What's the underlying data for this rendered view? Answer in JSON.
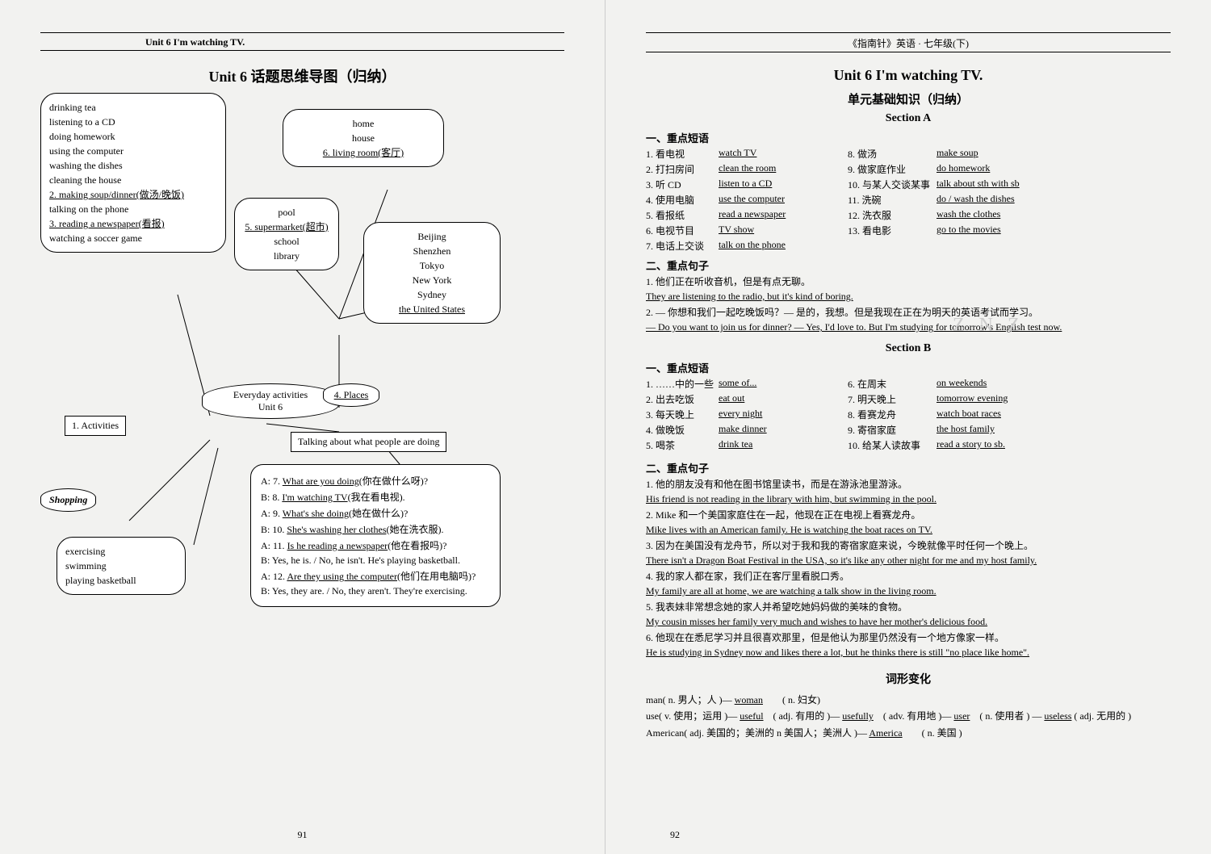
{
  "left": {
    "header": "Unit 6  I'm watching TV.",
    "title": "Unit 6   话题思维导图（归纳）",
    "page_no": "91",
    "activities_label": "1. Activities",
    "activities": [
      "drinking tea",
      "listening to a CD",
      "doing homework",
      "using the computer",
      "washing the dishes",
      "cleaning the house",
      "2. making soup/dinner(做汤/晚饭)",
      "talking on the phone",
      "3. reading a newspaper(看报)",
      "watching a soccer game"
    ],
    "places_home": [
      "home",
      "house",
      "6. living room(客厅)"
    ],
    "places_school": [
      "pool",
      "5. supermarket(超市)",
      "school",
      "library"
    ],
    "places_city": [
      "Beijing",
      "Shenzhen",
      "Tokyo",
      "New York",
      "Sydney",
      "the United States"
    ],
    "center_top": "Everyday activities",
    "center_mid": "Unit 6",
    "center_right": "Talking about what people are doing",
    "places_label": "4. Places",
    "shopping_label": "Shopping",
    "sports": [
      "exercising",
      "swimming",
      "playing basketball"
    ],
    "dialog": [
      "A: 7. What are you doing(你在做什么呀)?",
      "B: 8. I'm watching TV(我在看电视).",
      "A: 9. What's she doing(她在做什么)?",
      "B: 10. She's washing her clothes(她在洗衣服).",
      "A: 11. Is he reading a newspaper(他在看报吗)?",
      "B: Yes, he is. / No, he isn't. He's playing basketball.",
      "A: 12. Are they using the computer(他们在用电脑吗)?",
      "B: Yes, they are. / No, they aren't. They're exercising."
    ]
  },
  "right": {
    "header": "《指南针》英语 · 七年级(下)",
    "title": "Unit 6   I'm watching TV.",
    "subtitle": "单元基础知识（归纳）",
    "page_no": "92",
    "secA": {
      "hdr": "Section A",
      "sub1": "一、重点短语",
      "phrases": [
        [
          "1. 看电视",
          "watch TV",
          "8. 做汤",
          "make soup"
        ],
        [
          "2. 打扫房间",
          "clean the room",
          "9. 做家庭作业",
          "do homework"
        ],
        [
          "3. 听 CD",
          "listen to a CD",
          "10. 与某人交谈某事",
          "talk about sth with sb"
        ],
        [
          "4. 使用电脑",
          "use the computer",
          "11. 洗碗",
          "do / wash the dishes"
        ],
        [
          "5. 看报纸",
          "read a newspaper",
          "12. 洗衣服",
          "wash the clothes"
        ],
        [
          "6. 电视节目",
          "TV show",
          "13. 看电影",
          "go to the movies"
        ],
        [
          "7. 电话上交谈",
          "talk on the phone",
          "",
          ""
        ]
      ],
      "sub2": "二、重点句子",
      "sents": [
        {
          "cn": "1. 他们正在听收音机，但是有点无聊。",
          "en": "They are listening to the radio, but it's kind of boring."
        },
        {
          "cn": "2. — 你想和我们一起吃晚饭吗？— 是的，我想。但是我现在正在为明天的英语考试而学习。",
          "en": "— Do you want to join us for dinner? — Yes, I'd love to. But I'm studying for tomorrow's English test now."
        }
      ]
    },
    "secB": {
      "hdr": "Section B",
      "watermark": "Z N Z",
      "sub1": "一、重点短语",
      "phrases": [
        [
          "1. ……中的一些",
          "some of...",
          "6. 在周末",
          "on weekends"
        ],
        [
          "2. 出去吃饭",
          "eat out",
          "7. 明天晚上",
          "tomorrow evening"
        ],
        [
          "3. 每天晚上",
          "every night",
          "8. 看赛龙舟",
          "watch boat races"
        ],
        [
          "4. 做晚饭",
          "make dinner",
          "9. 寄宿家庭",
          "the host family"
        ],
        [
          "5. 喝茶",
          "drink tea",
          "10. 给某人读故事",
          "read a story to sb."
        ]
      ],
      "sub2": "二、重点句子",
      "sents": [
        {
          "cn": "1. 他的朋友没有和他在图书馆里读书，而是在游泳池里游泳。",
          "en": "His friend is not reading in the library with him, but swimming in the pool."
        },
        {
          "cn": "2. Mike 和一个美国家庭住在一起，他现在正在电视上看赛龙舟。",
          "en": "Mike lives with an American family. He is watching the boat races on TV."
        },
        {
          "cn": "3. 因为在美国没有龙舟节，所以对于我和我的寄宿家庭来说，今晚就像平时任何一个晚上。",
          "en": "There isn't a Dragon Boat Festival in the USA, so it's like any other night for me and my host family."
        },
        {
          "cn": "4. 我的家人都在家，我们正在客厅里看脱口秀。",
          "en": "My family are all at home, we are watching a talk show in the living room."
        },
        {
          "cn": "5. 我表妹非常想念她的家人并希望吃她妈妈做的美味的食物。",
          "en": "My cousin misses her family very much and wishes to have her mother's delicious food."
        },
        {
          "cn": "6. 他现在在悉尼学习并且很喜欢那里，但是他认为那里仍然没有一个地方像家一样。",
          "en": "He is studying in Sydney now and likes there a lot, but he thinks there is still \"no place like home\"."
        }
      ]
    },
    "word_hdr": "词形变化",
    "word_lines": [
      "man( n. 男人；人 )— woman　　( n. 妇女)",
      "use( v. 使用；运用 )— useful　( adj. 有用的 )— usefully　( adv. 有用地 )— user　( n. 使用者 ) — useless ( adj. 无用的 )",
      "American( adj. 美国的；美洲的 n 美国人；美洲人 )— America　　( n. 美国 )"
    ]
  }
}
